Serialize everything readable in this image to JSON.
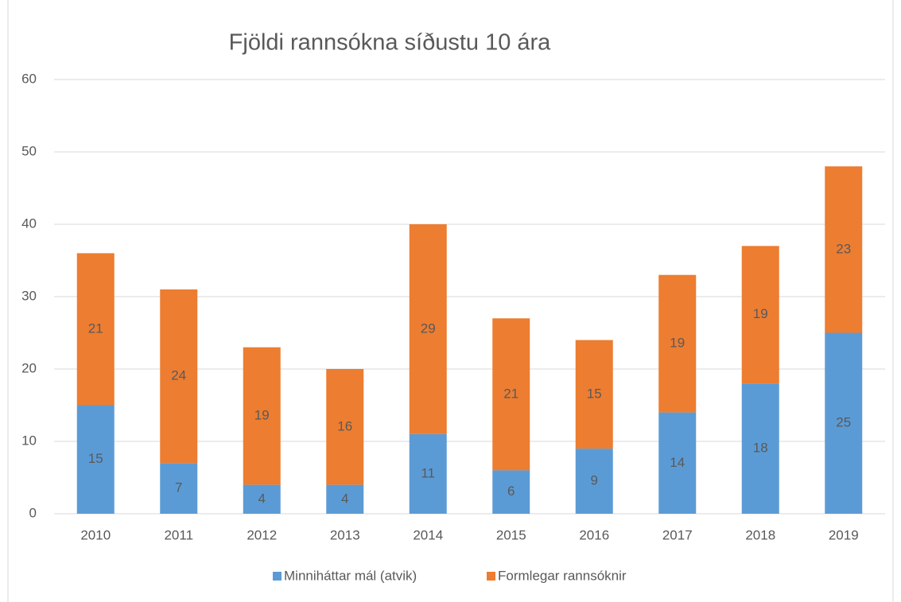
{
  "chart_data": {
    "type": "bar",
    "stacked": true,
    "title": "Fjöldi rannsókna síðustu 10 ára",
    "categories": [
      "2010",
      "2011",
      "2012",
      "2013",
      "2014",
      "2015",
      "2016",
      "2017",
      "2018",
      "2019"
    ],
    "series": [
      {
        "name": "Minniháttar mál (atvik)",
        "color": "#5b9bd5",
        "values": [
          15,
          7,
          4,
          4,
          11,
          6,
          9,
          14,
          18,
          25
        ]
      },
      {
        "name": "Formlegar rannsóknir",
        "color": "#ed7d31",
        "values": [
          21,
          24,
          19,
          16,
          29,
          21,
          15,
          19,
          19,
          23
        ]
      }
    ],
    "ylim": [
      0,
      60
    ],
    "yticks": [
      0,
      10,
      20,
      30,
      40,
      50,
      60
    ],
    "grid": true,
    "legend": "bottom"
  }
}
